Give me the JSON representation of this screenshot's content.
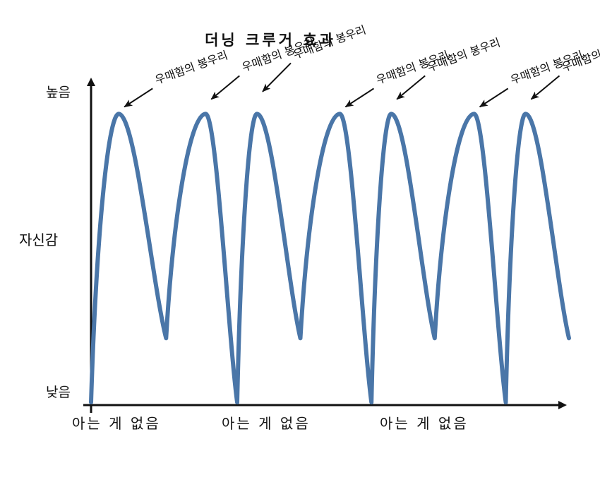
{
  "chart_data": {
    "type": "line",
    "title": "더닝 크루거 효과",
    "ylabel": "자신감",
    "y_ticks": {
      "high": "높음",
      "low": "낮음"
    },
    "x_labels": [
      "아는 게 없음",
      "아는 게 없음",
      "아는 게 없음"
    ],
    "annotation_label": "우매함의 봉우리",
    "annotations": [
      "우매함의 봉우리",
      "우매함의 봉우리",
      "우매함의 봉우리",
      "우매함의 봉우리",
      "우매함의 봉우리",
      "우매함의 봉우리",
      "우매함의 봉우리"
    ],
    "series": [
      {
        "points": [
          [
            0,
            0
          ],
          [
            7,
            90
          ],
          [
            19,
            20
          ],
          [
            29,
            90
          ],
          [
            37,
            0
          ],
          [
            42,
            90
          ],
          [
            53,
            20
          ],
          [
            63,
            90
          ],
          [
            71,
            0
          ],
          [
            76,
            90
          ],
          [
            87,
            20
          ],
          [
            97,
            90
          ],
          [
            105,
            0
          ],
          [
            110,
            90
          ],
          [
            121,
            20
          ]
        ]
      }
    ],
    "xlim": [
      0,
      121
    ],
    "ylim": [
      0,
      100
    ],
    "line_color": "#4a76a8",
    "grid": false
  }
}
